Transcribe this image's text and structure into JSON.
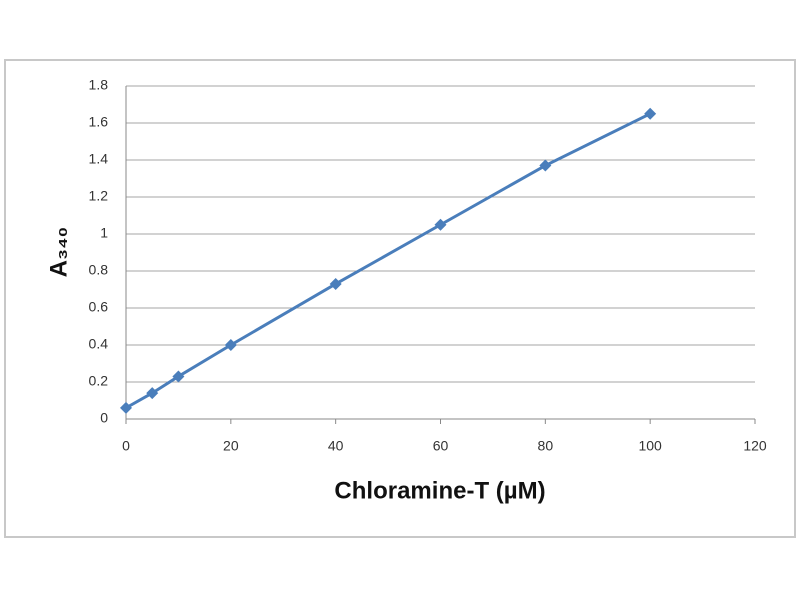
{
  "chart_data": {
    "type": "line",
    "xlabel": "Chloramine-T (µM)",
    "ylabel": "A₃₄₀",
    "x": [
      0,
      5,
      10,
      20,
      40,
      60,
      80,
      100
    ],
    "series": [
      {
        "color": "#4a7ebb",
        "values": [
          0.06,
          0.14,
          0.23,
          0.4,
          0.73,
          1.05,
          1.37,
          1.65
        ]
      }
    ],
    "xlim": [
      0,
      120
    ],
    "xticks": [
      0,
      20,
      40,
      60,
      80,
      100,
      120
    ],
    "ylim": [
      0,
      1.8
    ],
    "yticks": [
      0,
      0.2,
      0.4,
      0.6,
      0.8,
      1,
      1.2,
      1.4,
      1.6,
      1.8
    ],
    "grid": true
  }
}
